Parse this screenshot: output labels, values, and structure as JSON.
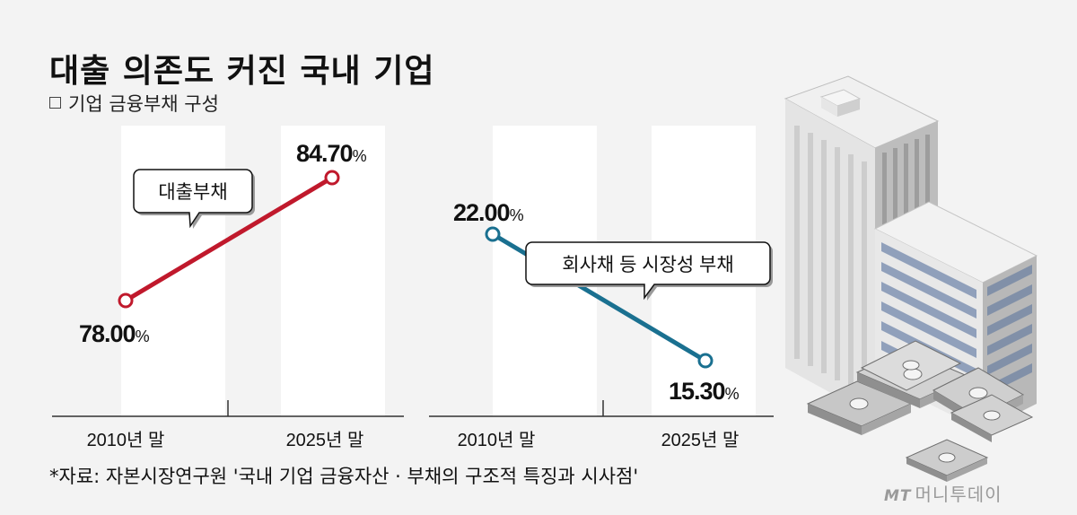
{
  "header": {
    "title": "대출 의존도 커진 국내 기업",
    "subtitle": "기업 금융부채 구성"
  },
  "footer": {
    "source": "*자료: 자본시장연구원 '국내 기업 금융자산 · 부채의 구조적 특징과 시사점'",
    "brand_mt": "MT",
    "brand_name": "머니투데이"
  },
  "chart_data": [
    {
      "type": "line",
      "categories": [
        "2010년 말",
        "2025년 말"
      ],
      "series": [
        {
          "name": "대출부채",
          "values": [
            78.0,
            84.7
          ],
          "value_labels": [
            "78.00",
            "84.70"
          ],
          "color": "#c0192c"
        }
      ],
      "unit": "%",
      "grid": false
    },
    {
      "type": "line",
      "categories": [
        "2010년 말",
        "2025년 말"
      ],
      "series": [
        {
          "name": "회사채 등 시장성 부채",
          "values": [
            22.0,
            15.3
          ],
          "value_labels": [
            "22.00",
            "15.30"
          ],
          "color": "#1a7090"
        }
      ],
      "unit": "%",
      "grid": false
    }
  ]
}
